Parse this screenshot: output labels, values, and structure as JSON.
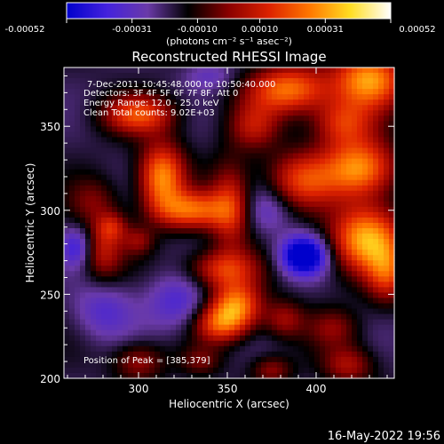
{
  "colorbar": {
    "tick_labels": [
      "-0.00052",
      "-0.00031",
      "-0.00010",
      "0.00010",
      "0.00031",
      "0.00052"
    ],
    "tick_values": [
      -0.00052,
      -0.00031,
      -0.0001,
      0.0001,
      0.00031,
      0.00052
    ],
    "range": [
      -0.00052,
      0.00052
    ],
    "unit_label": "(photons cm⁻² s⁻¹ asec⁻²)"
  },
  "info": {
    "time_range": "7-Dec-2011 10:45:48.000 to 10:50:40.000",
    "detectors": "Detectors: 3F 4F 5F 6F 7F 8F, Att 0",
    "energy": "Energy Range: 12.0 - 25.0 keV",
    "clean": "Clean     Total counts: 9.02E+03",
    "peak": "Position of Peak = [385,379]"
  },
  "timestamp": "16-May-2022 19:56",
  "chart_data": {
    "type": "heatmap",
    "title": "Reconstructed RHESSI Image",
    "xlabel": "Heliocentric X (arcsec)",
    "ylabel": "Heliocentric Y (arcsec)",
    "xlim": [
      258,
      444
    ],
    "ylim": [
      200,
      385
    ],
    "x_ticks": [
      300,
      350,
      400
    ],
    "y_ticks": [
      200,
      250,
      300,
      350
    ],
    "x_tick_labels": [
      "300",
      "350",
      "400"
    ],
    "y_tick_labels": [
      "200",
      "250",
      "300",
      "350"
    ],
    "colormap": [
      "#0000cc",
      "#4422dd",
      "#6a3aa8",
      "#000000",
      "#8a0000",
      "#dd2200",
      "#ff7700",
      "#ffdd22",
      "#ffffff"
    ],
    "value_range": [
      -0.00052,
      0.00052
    ],
    "peak_position": [
      385,
      379
    ],
    "sources": [
      {
        "x": 430,
        "y": 378,
        "value": 0.00048,
        "sx": 14,
        "sy": 12
      },
      {
        "x": 385,
        "y": 372,
        "value": 0.00042,
        "sx": 16,
        "sy": 10
      },
      {
        "x": 300,
        "y": 357,
        "value": 0.00035,
        "sx": 14,
        "sy": 8
      },
      {
        "x": 415,
        "y": 352,
        "value": 0.0003,
        "sx": 12,
        "sy": 10
      },
      {
        "x": 313,
        "y": 320,
        "value": 0.00046,
        "sx": 9,
        "sy": 14
      },
      {
        "x": 330,
        "y": 300,
        "value": 0.00038,
        "sx": 14,
        "sy": 8
      },
      {
        "x": 352,
        "y": 302,
        "value": 0.0003,
        "sx": 8,
        "sy": 18
      },
      {
        "x": 365,
        "y": 350,
        "value": 0.00022,
        "sx": 10,
        "sy": 10
      },
      {
        "x": 392,
        "y": 318,
        "value": 0.00032,
        "sx": 14,
        "sy": 12
      },
      {
        "x": 425,
        "y": 325,
        "value": 0.00046,
        "sx": 14,
        "sy": 12
      },
      {
        "x": 428,
        "y": 283,
        "value": 0.0005,
        "sx": 14,
        "sy": 14
      },
      {
        "x": 440,
        "y": 262,
        "value": 0.00028,
        "sx": 8,
        "sy": 12
      },
      {
        "x": 275,
        "y": 305,
        "value": 0.00015,
        "sx": 10,
        "sy": 10
      },
      {
        "x": 280,
        "y": 275,
        "value": 0.00024,
        "sx": 8,
        "sy": 12
      },
      {
        "x": 285,
        "y": 290,
        "value": 0.0002,
        "sx": 6,
        "sy": 6
      },
      {
        "x": 300,
        "y": 282,
        "value": 0.00016,
        "sx": 6,
        "sy": 6
      },
      {
        "x": 347,
        "y": 265,
        "value": 0.0003,
        "sx": 14,
        "sy": 8
      },
      {
        "x": 355,
        "y": 243,
        "value": 0.00044,
        "sx": 10,
        "sy": 10
      },
      {
        "x": 345,
        "y": 232,
        "value": 0.0003,
        "sx": 10,
        "sy": 8
      },
      {
        "x": 382,
        "y": 235,
        "value": 0.0002,
        "sx": 8,
        "sy": 8
      },
      {
        "x": 410,
        "y": 230,
        "value": 0.00016,
        "sx": 10,
        "sy": 8
      },
      {
        "x": 300,
        "y": 210,
        "value": 0.0002,
        "sx": 10,
        "sy": 8
      },
      {
        "x": 335,
        "y": 210,
        "value": 0.00014,
        "sx": 8,
        "sy": 6
      },
      {
        "x": 375,
        "y": 205,
        "value": 0.00018,
        "sx": 8,
        "sy": 6
      },
      {
        "x": 418,
        "y": 208,
        "value": 0.00022,
        "sx": 10,
        "sy": 8
      },
      {
        "x": 393,
        "y": 273,
        "value": -0.00048,
        "sx": 9,
        "sy": 8
      },
      {
        "x": 265,
        "y": 278,
        "value": -0.0002,
        "sx": 6,
        "sy": 8
      },
      {
        "x": 322,
        "y": 245,
        "value": -0.00018,
        "sx": 12,
        "sy": 12
      },
      {
        "x": 280,
        "y": 240,
        "value": -0.00016,
        "sx": 12,
        "sy": 12
      },
      {
        "x": 372,
        "y": 300,
        "value": -0.00014,
        "sx": 10,
        "sy": 10
      },
      {
        "x": 340,
        "y": 380,
        "value": -0.00012,
        "sx": 10,
        "sy": 6
      }
    ]
  }
}
